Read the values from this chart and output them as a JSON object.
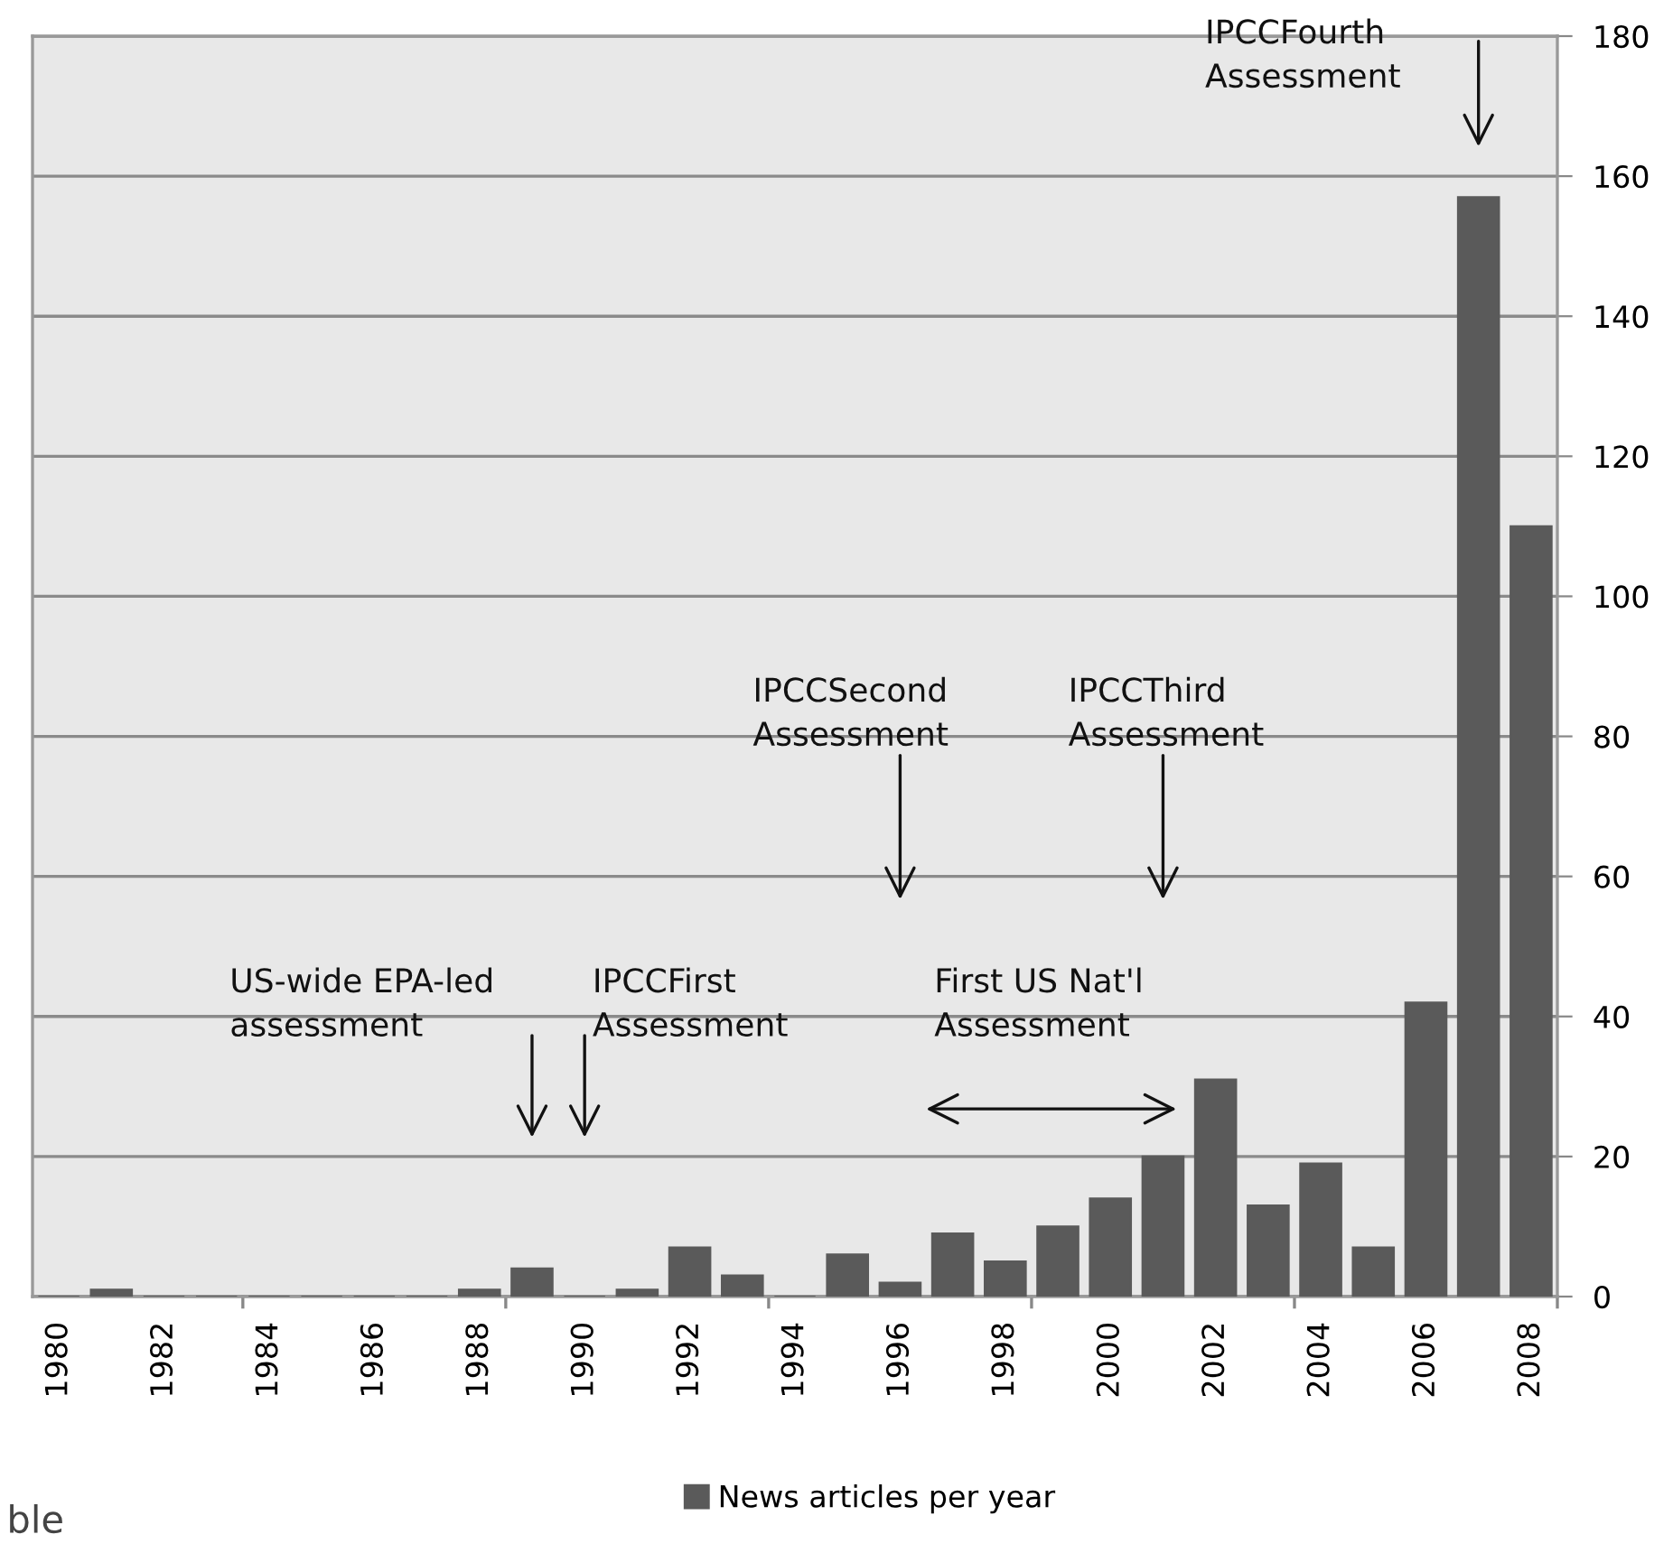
{
  "chart_data": {
    "type": "bar",
    "categories": [
      "1980",
      null,
      "1982",
      null,
      "1984",
      null,
      "1986",
      null,
      "1988",
      null,
      "1990",
      null,
      "1992",
      null,
      "1994",
      null,
      "1996",
      null,
      "1998",
      null,
      "2000",
      null,
      "2002",
      null,
      "2004",
      null,
      "2006",
      null,
      "2008"
    ],
    "series": [
      {
        "name": "News articles per year",
        "color": "#5a5a5a",
        "values": [
          0,
          1,
          0,
          0,
          0,
          0,
          0,
          0,
          1,
          4,
          0,
          1,
          7,
          3,
          0,
          6,
          2,
          9,
          5,
          10,
          14,
          20,
          31,
          13,
          19,
          7,
          42,
          157,
          110
        ]
      }
    ],
    "ylim": [
      0,
      180
    ],
    "yticks": [
      0,
      20,
      40,
      60,
      80,
      100,
      120,
      140,
      160,
      180
    ],
    "grid": "y",
    "legend": "bottom",
    "annotations": [
      "US-wide EPA-led\nassessment",
      "IPCCFirst\nAssessment",
      "IPCCSecond\nAssessment",
      "IPCCThird\nAssessment",
      "First US Nat'l\nAssessment",
      "IPCCFourth\nAssessment",
      "ble"
    ]
  }
}
